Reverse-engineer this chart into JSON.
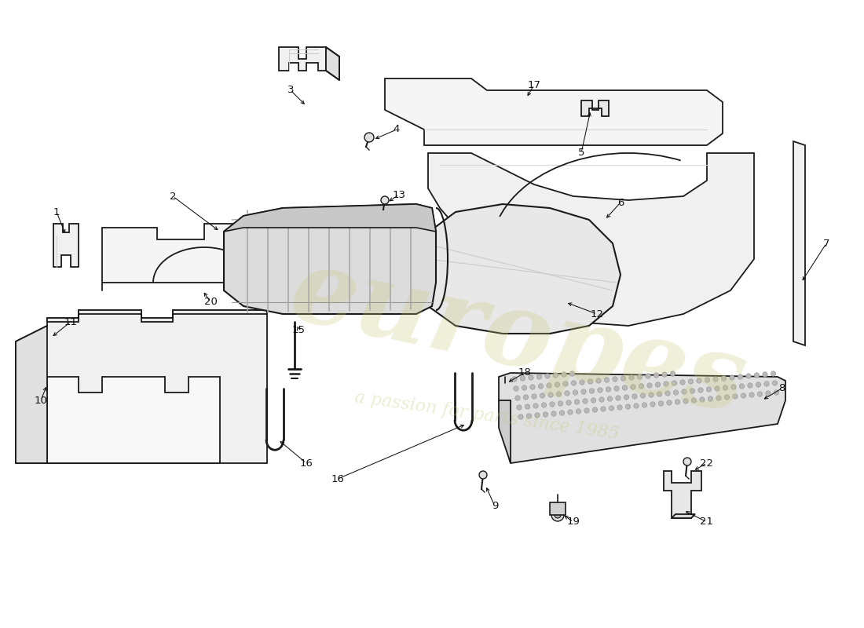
{
  "background_color": "#ffffff",
  "line_color": "#1a1a1a",
  "lw": 1.3,
  "watermark_text1": "europes",
  "watermark_text2": "a passion for parts since 1985",
  "wm_color": "#c8c87a",
  "wm_alpha": 0.28
}
